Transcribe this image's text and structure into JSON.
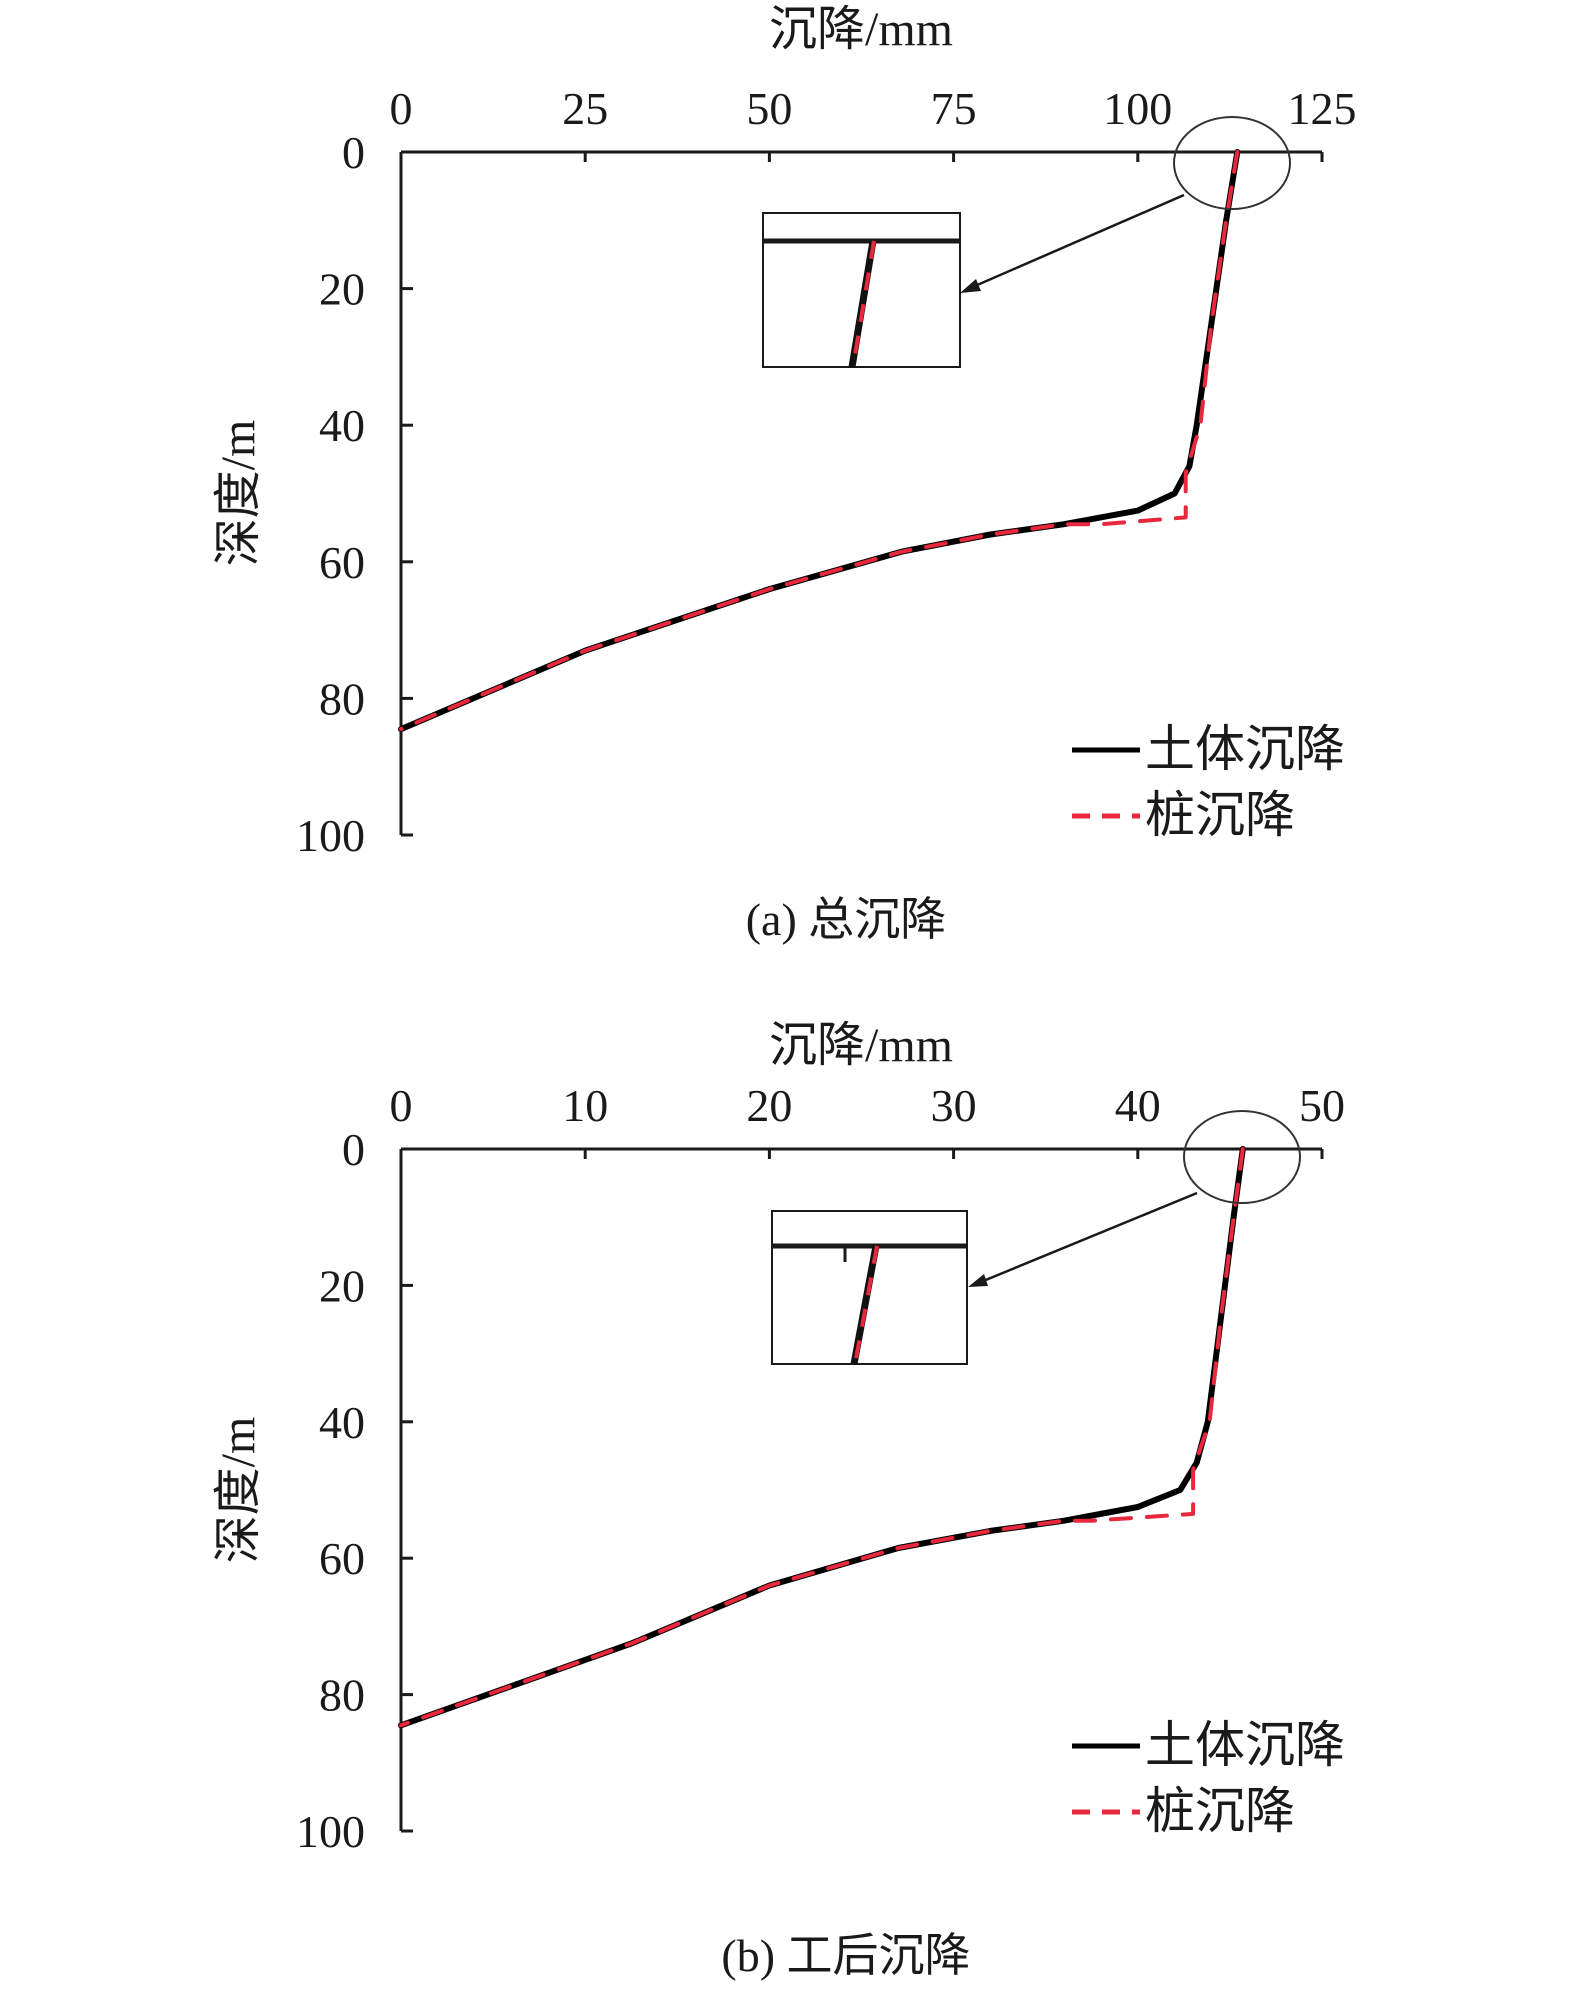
{
  "chart_data": [
    {
      "type": "line",
      "caption": "(a) 总沉降",
      "xlabel": "沉降/mm",
      "ylabel": "深度/m",
      "xlim": [
        0,
        125
      ],
      "ylim": [
        0,
        100
      ],
      "y_inverted": true,
      "x_axis_position": "top",
      "x_ticks": [
        "0",
        "25",
        "50",
        "75",
        "100",
        "125"
      ],
      "y_ticks": [
        "0",
        "20",
        "40",
        "60",
        "80",
        "100"
      ],
      "legend_position": "bottom-right",
      "inset": "zoom of surface region, circled near x≈113, depth 0",
      "series": [
        {
          "name": "土体沉降",
          "color": "#000000",
          "style": "solid",
          "points": [
            [
              113.5,
              0
            ],
            [
              112,
              10
            ],
            [
              110,
              25
            ],
            [
              108,
              40
            ],
            [
              107,
              46
            ],
            [
              105,
              50
            ],
            [
              100,
              52.5
            ],
            [
              90,
              54.5
            ],
            [
              80,
              56
            ],
            [
              68,
              58.5
            ],
            [
              50,
              64
            ],
            [
              25,
              73
            ],
            [
              0,
              84.5
            ]
          ]
        },
        {
          "name": "桩沉降",
          "color": "#e8283c",
          "style": "dashed",
          "points": [
            [
              113.5,
              0
            ],
            [
              112,
              10
            ],
            [
              110,
              25
            ],
            [
              108.5,
              40
            ],
            [
              106.5,
              47
            ],
            [
              106.5,
              53.5
            ],
            [
              95,
              54.5
            ],
            [
              90,
              54.5
            ],
            [
              80,
              56
            ],
            [
              68,
              58.5
            ],
            [
              50,
              64
            ],
            [
              25,
              73
            ],
            [
              0,
              84.5
            ]
          ]
        }
      ]
    },
    {
      "type": "line",
      "caption": "(b) 工后沉降",
      "xlabel": "沉降/mm",
      "ylabel": "深度/m",
      "xlim": [
        0,
        50
      ],
      "ylim": [
        0,
        100
      ],
      "y_inverted": true,
      "x_axis_position": "top",
      "x_ticks": [
        "0",
        "10",
        "20",
        "30",
        "40",
        "50"
      ],
      "y_ticks": [
        "0",
        "20",
        "40",
        "60",
        "80",
        "100"
      ],
      "legend_position": "bottom-right",
      "inset": "zoom of surface region, circled near x≈45.7, depth 0",
      "series": [
        {
          "name": "土体沉降",
          "color": "#000000",
          "style": "solid",
          "points": [
            [
              45.7,
              0
            ],
            [
              45.2,
              10
            ],
            [
              44.5,
              25
            ],
            [
              43.8,
              40
            ],
            [
              43.2,
              46
            ],
            [
              42.3,
              50
            ],
            [
              40,
              52.5
            ],
            [
              36,
              54.5
            ],
            [
              32,
              56
            ],
            [
              27,
              58.5
            ],
            [
              20,
              64
            ],
            [
              12.5,
              72.5
            ],
            [
              0,
              84.5
            ]
          ]
        },
        {
          "name": "桩沉降",
          "color": "#e8283c",
          "style": "dashed",
          "points": [
            [
              45.7,
              0
            ],
            [
              45.2,
              10
            ],
            [
              44.5,
              25
            ],
            [
              43.9,
              40
            ],
            [
              43.0,
              47
            ],
            [
              43.0,
              53.5
            ],
            [
              37.5,
              54.5
            ],
            [
              36,
              54.5
            ],
            [
              32,
              56
            ],
            [
              27,
              58.5
            ],
            [
              20,
              64
            ],
            [
              12.5,
              72.5
            ],
            [
              0,
              84.5
            ]
          ]
        }
      ]
    }
  ]
}
